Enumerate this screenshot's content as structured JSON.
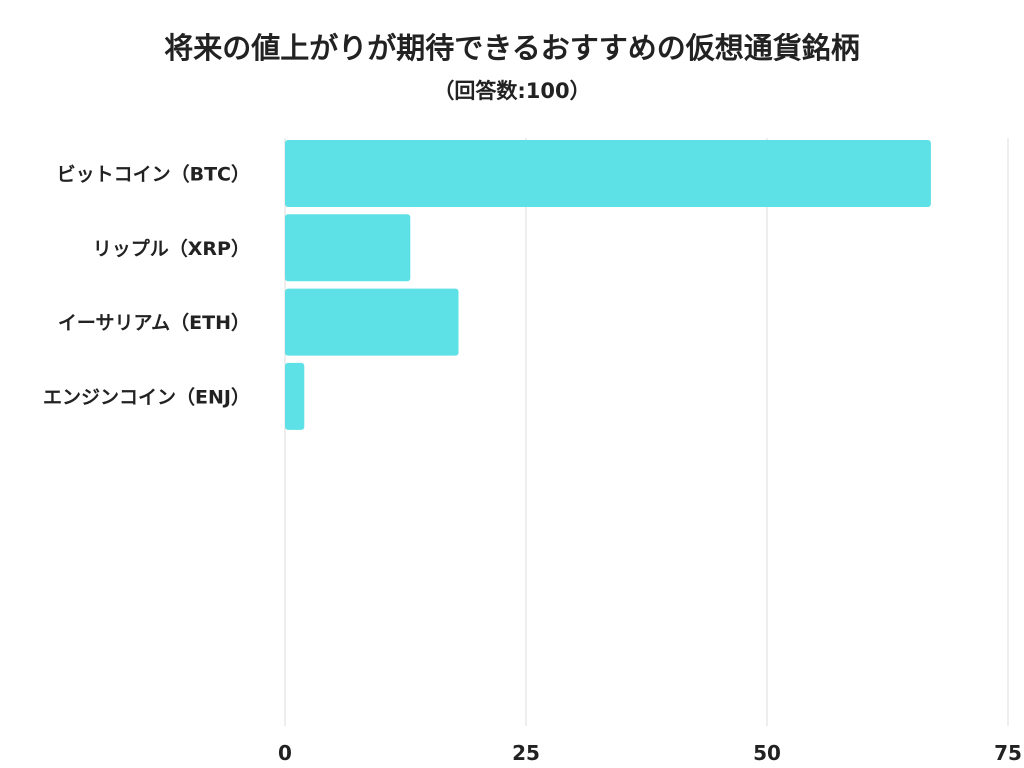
{
  "chart_data": {
    "type": "bar",
    "orientation": "horizontal",
    "title": "将来の値上がりが期待できるおすすめの仮想通貨銘柄",
    "subtitle": "（回答数:100）",
    "categories": [
      "ビットコイン（BTC）",
      "リップル（XRP）",
      "イーサリアム（ETH）",
      "エンジンコイン（ENJ）"
    ],
    "values": [
      67,
      13,
      18,
      2
    ],
    "xlim": [
      0,
      75
    ],
    "ticks": [
      "0",
      "25",
      "50",
      "75"
    ],
    "tick_values": [
      0,
      25,
      50,
      75
    ],
    "grid": true,
    "bar_color": "#5ee1e6"
  }
}
